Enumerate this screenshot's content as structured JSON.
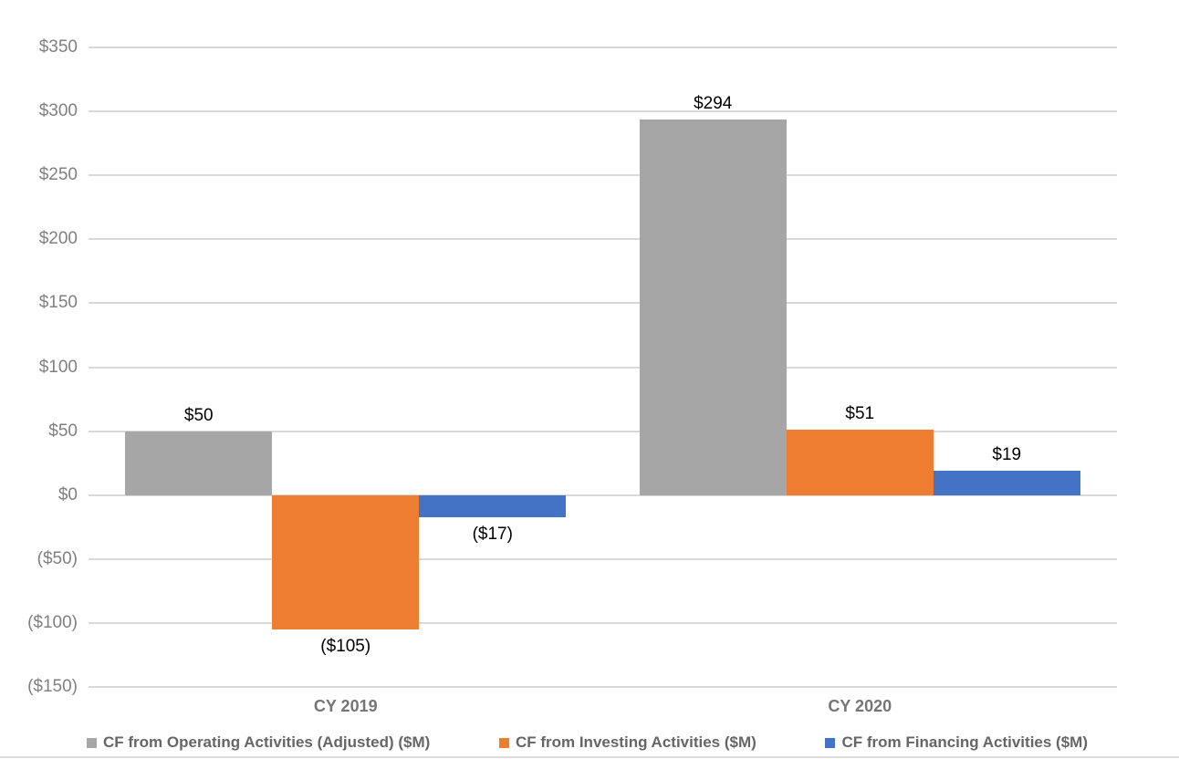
{
  "chart_data": {
    "type": "bar",
    "title": "",
    "xlabel": "",
    "ylabel": "",
    "categories": [
      "CY 2019",
      "CY 2020"
    ],
    "series": [
      {
        "name": "CF from Operating Activities (Adjusted) ($M)",
        "color": "#a6a6a6",
        "values": [
          50,
          294
        ],
        "labels": [
          "$50",
          "$294"
        ]
      },
      {
        "name": "CF from Investing Activities ($M)",
        "color": "#ed7d31",
        "values": [
          -105,
          51
        ],
        "labels": [
          "($105)",
          "$51"
        ]
      },
      {
        "name": "CF from Financing Activities ($M)",
        "color": "#4472c4",
        "values": [
          -17,
          19
        ],
        "labels": [
          "($17)",
          "$19"
        ]
      }
    ],
    "ylim": [
      -150,
      350
    ],
    "ytick_step": 50,
    "yticks": [
      350,
      300,
      250,
      200,
      150,
      100,
      50,
      0,
      -50,
      -100,
      -150
    ],
    "ytick_labels": [
      "$350",
      "$300",
      "$250",
      "$200",
      "$150",
      "$100",
      "$50",
      "$0",
      "($50)",
      "($100)",
      "($150)"
    ],
    "grid": true,
    "gridline_color": "#d9d9d9",
    "data_label_color": "#000000",
    "axis_label_color": "#808080",
    "legend_position": "bottom"
  }
}
